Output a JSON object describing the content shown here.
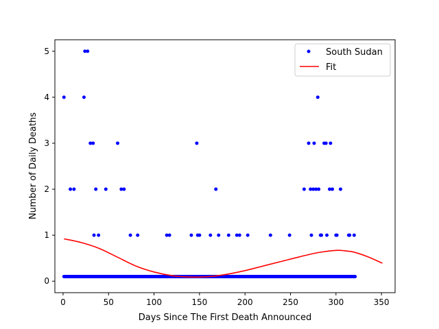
{
  "chart_data": {
    "type": "scatter",
    "xlabel": "Days Since The First Death Announced",
    "ylabel": "Number of Daily Deaths",
    "xlim": [
      -9,
      365
    ],
    "ylim": [
      -0.25,
      5.25
    ],
    "x_ticks": [
      0,
      50,
      100,
      150,
      200,
      250,
      300,
      350
    ],
    "y_ticks": [
      0,
      1,
      2,
      3,
      4,
      5
    ],
    "legend_position": "top-right",
    "grid": false,
    "series": [
      {
        "name": "South Sudan",
        "kind": "scatter",
        "color": "#0000ff",
        "points": [
          [
            1,
            4
          ],
          [
            8,
            2
          ],
          [
            12,
            2
          ],
          [
            23,
            4
          ],
          [
            24,
            5
          ],
          [
            27,
            5
          ],
          [
            30,
            3
          ],
          [
            33,
            3
          ],
          [
            34,
            1
          ],
          [
            36,
            2
          ],
          [
            39,
            1
          ],
          [
            47,
            2
          ],
          [
            60,
            3
          ],
          [
            64,
            2
          ],
          [
            67,
            2
          ],
          [
            74,
            1
          ],
          [
            82,
            1
          ],
          [
            114,
            1
          ],
          [
            117,
            1
          ],
          [
            141,
            1
          ],
          [
            147,
            3
          ],
          [
            148,
            1
          ],
          [
            150,
            1
          ],
          [
            162,
            1
          ],
          [
            168,
            2
          ],
          [
            171,
            1
          ],
          [
            182,
            1
          ],
          [
            191,
            1
          ],
          [
            194,
            1
          ],
          [
            203,
            1
          ],
          [
            228,
            1
          ],
          [
            249,
            1
          ],
          [
            265,
            2
          ],
          [
            270,
            3
          ],
          [
            272,
            2
          ],
          [
            273,
            1
          ],
          [
            275,
            2
          ],
          [
            276,
            3
          ],
          [
            278,
            2
          ],
          [
            280,
            4
          ],
          [
            281,
            2
          ],
          [
            283,
            1
          ],
          [
            284,
            1
          ],
          [
            287,
            3
          ],
          [
            289,
            3
          ],
          [
            290,
            1
          ],
          [
            293,
            2
          ],
          [
            294,
            3
          ],
          [
            296,
            2
          ],
          [
            300,
            1
          ],
          [
            301,
            1
          ],
          [
            305,
            2
          ],
          [
            314,
            1
          ],
          [
            315,
            1
          ],
          [
            320,
            1
          ]
        ],
        "zero_range": [
          1,
          321
        ]
      },
      {
        "name": "Fit",
        "kind": "line",
        "color": "#ff0000",
        "points": [
          [
            1,
            0.92
          ],
          [
            20,
            0.84
          ],
          [
            40,
            0.71
          ],
          [
            60,
            0.52
          ],
          [
            80,
            0.33
          ],
          [
            100,
            0.2
          ],
          [
            120,
            0.12
          ],
          [
            140,
            0.09
          ],
          [
            160,
            0.1
          ],
          [
            180,
            0.15
          ],
          [
            200,
            0.23
          ],
          [
            220,
            0.33
          ],
          [
            240,
            0.43
          ],
          [
            260,
            0.53
          ],
          [
            280,
            0.62
          ],
          [
            300,
            0.67
          ],
          [
            310,
            0.66
          ],
          [
            320,
            0.63
          ],
          [
            335,
            0.53
          ],
          [
            351,
            0.39
          ]
        ]
      }
    ]
  }
}
